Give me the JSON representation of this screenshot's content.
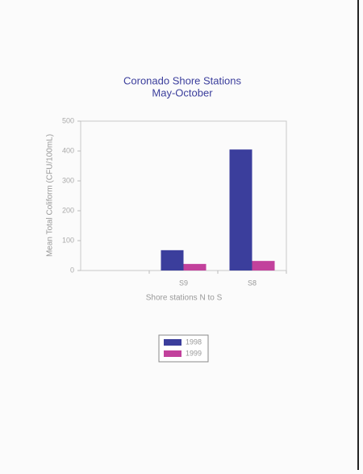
{
  "chart_data": {
    "type": "bar",
    "title": "Coronado Shore Stations",
    "subtitle": "May-October",
    "y_label": "Mean Total Coliform (CFU/100mL)",
    "x_label": "Shore stations N to S",
    "categories": [
      null,
      "S9",
      "S8"
    ],
    "series": [
      {
        "name": "1998",
        "color": "#3b3e9c",
        "values": [
          null,
          68,
          405
        ]
      },
      {
        "name": "1999",
        "color": "#c2419c",
        "values": [
          null,
          22,
          32
        ]
      }
    ],
    "ylim": [
      0,
      500
    ],
    "yticks": [
      0,
      100,
      200,
      300,
      400,
      500
    ]
  }
}
